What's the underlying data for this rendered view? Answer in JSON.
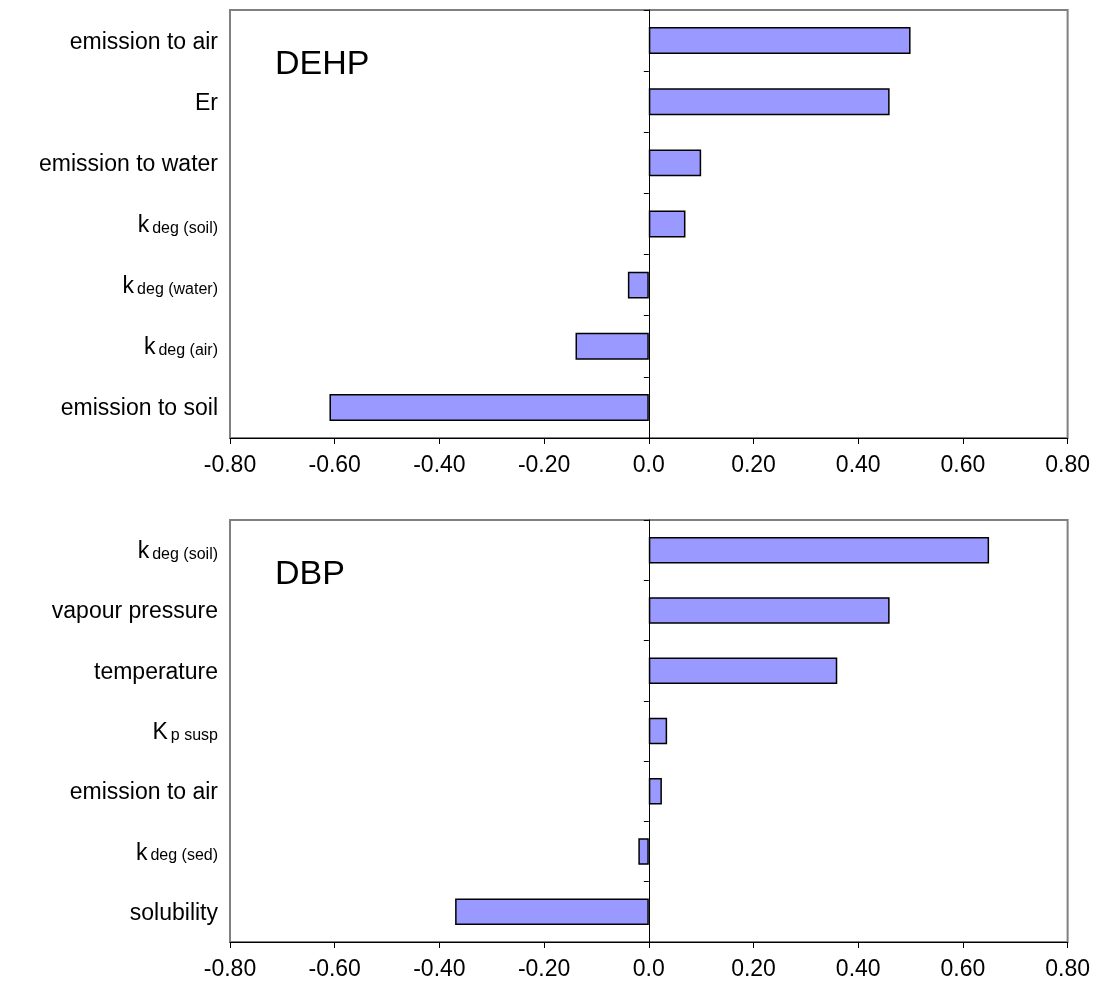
{
  "chart_data": [
    {
      "type": "bar",
      "orientation": "horizontal",
      "title": "DEHP",
      "categories": [
        "emission to air",
        "Er",
        "emission to water",
        "k$_{deg (soil)}$",
        "k$_{deg (water)}$",
        "k$_{deg (air)}$",
        "emission to soil"
      ],
      "values": [
        0.5,
        0.46,
        0.1,
        0.07,
        -0.04,
        -0.14,
        -0.61
      ],
      "color": "#9999ff",
      "xlim": [
        -0.8,
        0.8
      ],
      "xticks": [
        {
          "value": -0.8,
          "label": "-0.80"
        },
        {
          "value": -0.6,
          "label": "-0.60"
        },
        {
          "value": -0.4,
          "label": "-0.40"
        },
        {
          "value": -0.2,
          "label": "-0.20"
        },
        {
          "value": 0,
          "label": "0.0"
        },
        {
          "value": 0.2,
          "label": "0.20"
        },
        {
          "value": 0.4,
          "label": "0.40"
        },
        {
          "value": 0.6,
          "label": "0.60"
        },
        {
          "value": 0.8,
          "label": "0.80"
        }
      ]
    },
    {
      "type": "bar",
      "orientation": "horizontal",
      "title": "DBP",
      "categories": [
        "k$_{deg (soil)}$",
        "vapour pressure",
        "temperature",
        "K$_{p susp}$",
        "emission to air",
        "k$_{deg (sed)}$",
        "solubility"
      ],
      "values": [
        0.65,
        0.46,
        0.36,
        0.035,
        0.025,
        -0.02,
        -0.37
      ],
      "color": "#9999ff",
      "xlim": [
        -0.8,
        0.8
      ],
      "xticks": [
        {
          "value": -0.8,
          "label": "-0.80"
        },
        {
          "value": -0.6,
          "label": "-0.60"
        },
        {
          "value": -0.4,
          "label": "-0.40"
        },
        {
          "value": -0.2,
          "label": "-0.20"
        },
        {
          "value": 0,
          "label": "0.0"
        },
        {
          "value": 0.2,
          "label": "0.20"
        },
        {
          "value": 0.4,
          "label": "0.40"
        },
        {
          "value": 0.6,
          "label": "0.60"
        },
        {
          "value": 0.8,
          "label": "0.80"
        }
      ]
    }
  ]
}
